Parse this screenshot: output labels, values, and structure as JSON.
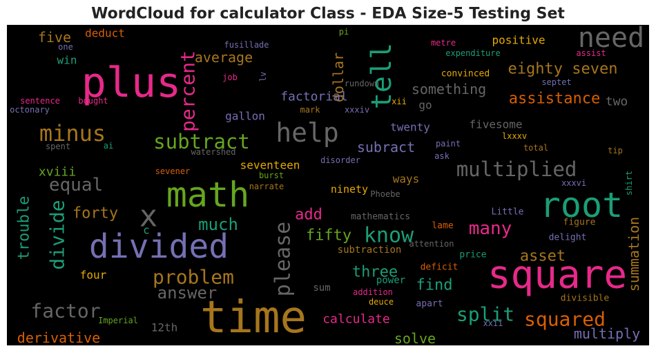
{
  "chart_data": {
    "type": "wordcloud",
    "title": "WordCloud for calculator Class - EDA Size-5 Testing Set",
    "words": [
      {
        "text": "plus",
        "weight": 60,
        "color": "#e7298a"
      },
      {
        "text": "time",
        "weight": 64,
        "color": "#a6761d"
      },
      {
        "text": "square",
        "weight": 56,
        "color": "#e7298a"
      },
      {
        "text": "divided",
        "weight": 48,
        "color": "#7570b3"
      },
      {
        "text": "math",
        "weight": 50,
        "color": "#66a61e"
      },
      {
        "text": "root",
        "weight": 50,
        "color": "#1b9e77"
      },
      {
        "text": "need",
        "weight": 40,
        "color": "#666666"
      },
      {
        "text": "help",
        "weight": 38,
        "color": "#666666"
      },
      {
        "text": "tell",
        "weight": 40,
        "color": "#1b9e77"
      },
      {
        "text": "x",
        "weight": 44,
        "color": "#666666"
      },
      {
        "text": "percent",
        "weight": 28,
        "color": "#e7298a"
      },
      {
        "text": "please",
        "weight": 30,
        "color": "#666666"
      },
      {
        "text": "minus",
        "weight": 32,
        "color": "#a6761d"
      },
      {
        "text": "subtract",
        "weight": 29,
        "color": "#66a61e"
      },
      {
        "text": "multiplied",
        "weight": 29,
        "color": "#666666"
      },
      {
        "text": "know",
        "weight": 30,
        "color": "#1b9e77"
      },
      {
        "text": "problem",
        "weight": 28,
        "color": "#a6761d"
      },
      {
        "text": "answer",
        "weight": 24,
        "color": "#666666"
      },
      {
        "text": "factor",
        "weight": 28,
        "color": "#666666"
      },
      {
        "text": "split",
        "weight": 28,
        "color": "#1b9e77"
      },
      {
        "text": "squared",
        "weight": 28,
        "color": "#d95f02"
      },
      {
        "text": "many",
        "weight": 26,
        "color": "#e7298a"
      },
      {
        "text": "much",
        "weight": 24,
        "color": "#1b9e77"
      },
      {
        "text": "equal",
        "weight": 26,
        "color": "#666666"
      },
      {
        "text": "forty",
        "weight": 22,
        "color": "#a6761d"
      },
      {
        "text": "divide",
        "weight": 28,
        "color": "#1b9e77"
      },
      {
        "text": "trouble",
        "weight": 22,
        "color": "#1b9e77"
      },
      {
        "text": "summation",
        "weight": 20,
        "color": "#a6761d"
      },
      {
        "text": "derivative",
        "weight": 20,
        "color": "#d95f02"
      },
      {
        "text": "solve",
        "weight": 20,
        "color": "#66a61e"
      },
      {
        "text": "multiply",
        "weight": 20,
        "color": "#7570b3"
      },
      {
        "text": "calculate",
        "weight": 18,
        "color": "#e7298a"
      },
      {
        "text": "three",
        "weight": 22,
        "color": "#1b9e77"
      },
      {
        "text": "asset",
        "weight": 22,
        "color": "#a6761d"
      },
      {
        "text": "find",
        "weight": 22,
        "color": "#1b9e77"
      },
      {
        "text": "fifty",
        "weight": 22,
        "color": "#66a61e"
      },
      {
        "text": "add",
        "weight": 22,
        "color": "#e7298a"
      },
      {
        "text": "eighty seven",
        "weight": 22,
        "color": "#a6761d"
      },
      {
        "text": "assistance",
        "weight": 22,
        "color": "#d95f02"
      },
      {
        "text": "something",
        "weight": 20,
        "color": "#666666"
      },
      {
        "text": "average",
        "weight": 20,
        "color": "#a6761d"
      },
      {
        "text": "dollar",
        "weight": 20,
        "color": "#a6761d"
      },
      {
        "text": "factorial",
        "weight": 18,
        "color": "#7570b3"
      },
      {
        "text": "gallon",
        "weight": 16,
        "color": "#7570b3"
      },
      {
        "text": "twenty",
        "weight": 16,
        "color": "#7570b3"
      },
      {
        "text": "fivesome",
        "weight": 16,
        "color": "#666666"
      },
      {
        "text": "subract",
        "weight": 20,
        "color": "#7570b3"
      },
      {
        "text": "seventeen",
        "weight": 16,
        "color": "#e6ab02"
      },
      {
        "text": "ways",
        "weight": 16,
        "color": "#a6761d"
      },
      {
        "text": "ninety",
        "weight": 15,
        "color": "#e6ab02"
      },
      {
        "text": "go",
        "weight": 16,
        "color": "#666666"
      },
      {
        "text": "two",
        "weight": 18,
        "color": "#666666"
      },
      {
        "text": "five",
        "weight": 20,
        "color": "#a6761d"
      },
      {
        "text": "deduct",
        "weight": 16,
        "color": "#d95f02"
      },
      {
        "text": "win",
        "weight": 16,
        "color": "#1b9e77"
      },
      {
        "text": "xviii",
        "weight": 18,
        "color": "#66a61e"
      },
      {
        "text": "positive",
        "weight": 16,
        "color": "#e6ab02"
      },
      {
        "text": "four",
        "weight": 16,
        "color": "#e6ab02"
      },
      {
        "text": "sum",
        "weight": 14,
        "color": "#666666"
      },
      {
        "text": "power",
        "weight": 14,
        "color": "#1b9e77"
      },
      {
        "text": "addition",
        "weight": 12,
        "color": "#e7298a"
      },
      {
        "text": "deuce",
        "weight": 12,
        "color": "#e6ab02"
      },
      {
        "text": "subtraction",
        "weight": 14,
        "color": "#a6761d"
      },
      {
        "text": "mathematics",
        "weight": 13,
        "color": "#666666"
      },
      {
        "text": "deficit",
        "weight": 13,
        "color": "#d95f02"
      },
      {
        "text": "price",
        "weight": 13,
        "color": "#1b9e77"
      },
      {
        "text": "attention",
        "weight": 12,
        "color": "#666666"
      },
      {
        "text": "lame",
        "weight": 13,
        "color": "#d95f02"
      },
      {
        "text": "Little",
        "weight": 13,
        "color": "#7570b3"
      },
      {
        "text": "figure",
        "weight": 13,
        "color": "#a6761d"
      },
      {
        "text": "delight",
        "weight": 13,
        "color": "#7570b3"
      },
      {
        "text": "divisible",
        "weight": 13,
        "color": "#a6761d"
      },
      {
        "text": "apart",
        "weight": 13,
        "color": "#7570b3"
      },
      {
        "text": "xxii",
        "weight": 12,
        "color": "#7570b3"
      },
      {
        "text": "12th",
        "weight": 16,
        "color": "#666666"
      },
      {
        "text": "Imperial",
        "weight": 12,
        "color": "#66a61e"
      },
      {
        "text": "c",
        "weight": 16,
        "color": "#1b9e77"
      },
      {
        "text": "sentence",
        "weight": 12,
        "color": "#e7298a"
      },
      {
        "text": "octonary",
        "weight": 12,
        "color": "#7570b3"
      },
      {
        "text": "bought",
        "weight": 12,
        "color": "#e7298a"
      },
      {
        "text": "spent",
        "weight": 12,
        "color": "#666666"
      },
      {
        "text": "ai",
        "weight": 12,
        "color": "#1b9e77"
      },
      {
        "text": "watershed",
        "weight": 12,
        "color": "#666666"
      },
      {
        "text": "sevener",
        "weight": 12,
        "color": "#d95f02"
      },
      {
        "text": "narrate",
        "weight": 12,
        "color": "#a6761d"
      },
      {
        "text": "burst",
        "weight": 12,
        "color": "#66a61e"
      },
      {
        "text": "disorder",
        "weight": 12,
        "color": "#7570b3"
      },
      {
        "text": "Phoebe",
        "weight": 12,
        "color": "#666666"
      },
      {
        "text": "xxxvi",
        "weight": 12,
        "color": "#7570b3"
      },
      {
        "text": "shirt",
        "weight": 12,
        "color": "#1b9e77"
      },
      {
        "text": "tip",
        "weight": 12,
        "color": "#a6761d"
      },
      {
        "text": "total",
        "weight": 12,
        "color": "#a6761d"
      },
      {
        "text": "ask",
        "weight": 12,
        "color": "#7570b3"
      },
      {
        "text": "lxxxv",
        "weight": 12,
        "color": "#e6ab02"
      },
      {
        "text": "paint",
        "weight": 12,
        "color": "#7570b3"
      },
      {
        "text": "xii",
        "weight": 12,
        "color": "#e6ab02"
      },
      {
        "text": "mark",
        "weight": 12,
        "color": "#a6761d"
      },
      {
        "text": "xxxiv",
        "weight": 12,
        "color": "#7570b3"
      },
      {
        "text": "septet",
        "weight": 12,
        "color": "#7570b3"
      },
      {
        "text": "convinced",
        "weight": 13,
        "color": "#e6ab02"
      },
      {
        "text": "rundown",
        "weight": 12,
        "color": "#666666"
      },
      {
        "text": "expenditure",
        "weight": 12,
        "color": "#1b9e77"
      },
      {
        "text": "metre",
        "weight": 12,
        "color": "#e7298a"
      },
      {
        "text": "assist",
        "weight": 12,
        "color": "#e7298a"
      },
      {
        "text": "pi",
        "weight": 12,
        "color": "#66a61e"
      },
      {
        "text": "fusillade",
        "weight": 12,
        "color": "#7570b3"
      },
      {
        "text": "one",
        "weight": 12,
        "color": "#7570b3"
      },
      {
        "text": "job",
        "weight": 12,
        "color": "#e7298a"
      },
      {
        "text": "lv",
        "weight": 12,
        "color": "#7570b3"
      }
    ]
  }
}
